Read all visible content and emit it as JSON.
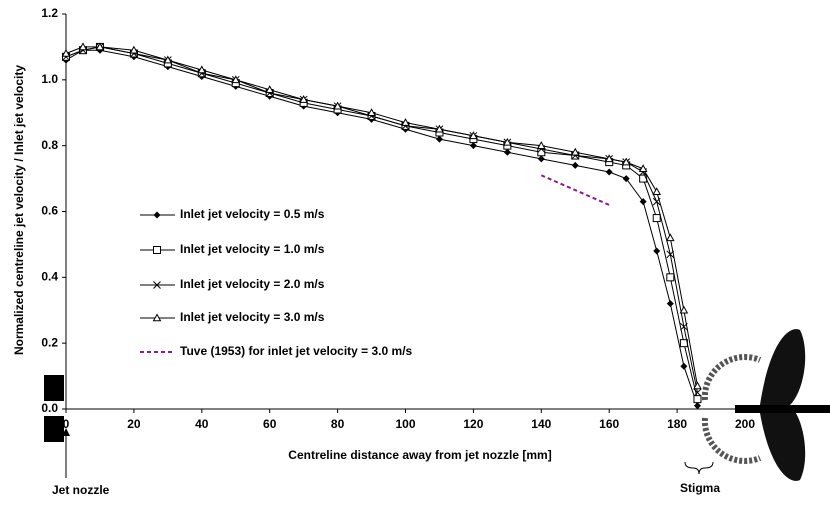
{
  "chart_data": {
    "type": "line",
    "x_label": "Centreline distance away from jet nozzle [mm]",
    "y_label": "Normalized centreline jet velocity / Inlet jet velocity",
    "annotations": [
      "Jet nozzle",
      "Stigma"
    ],
    "x": [
      0,
      5,
      10,
      20,
      30,
      40,
      50,
      60,
      70,
      80,
      90,
      100,
      110,
      120,
      130,
      140,
      150,
      160,
      165,
      170,
      174,
      178,
      182,
      186
    ],
    "xlim": [
      0,
      220
    ],
    "ylim": [
      0,
      1.2
    ],
    "xticks": [
      0,
      20,
      40,
      60,
      80,
      100,
      120,
      140,
      160,
      180,
      200
    ],
    "yticks": [
      {
        "value": 0,
        "label": "0.0"
      },
      0.2,
      0.4,
      0.6,
      0.8,
      {
        "value": 1,
        "label": "1.0"
      },
      1.2
    ],
    "series": [
      {
        "name": "Inlet jet velocity = 0.5 m/s",
        "color": "#000000",
        "marker": "diamond",
        "values": [
          1.06,
          1.09,
          1.09,
          1.07,
          1.04,
          1.01,
          0.98,
          0.95,
          0.92,
          0.9,
          0.88,
          0.85,
          0.82,
          0.8,
          0.78,
          0.76,
          0.74,
          0.72,
          0.7,
          0.63,
          0.48,
          0.32,
          0.13,
          0.01
        ]
      },
      {
        "name": "Inlet jet velocity = 1.0 m/s",
        "color": "#000000",
        "marker": "square",
        "values": [
          1.07,
          1.09,
          1.1,
          1.08,
          1.05,
          1.02,
          0.99,
          0.96,
          0.93,
          0.91,
          0.89,
          0.86,
          0.84,
          0.82,
          0.8,
          0.78,
          0.77,
          0.75,
          0.74,
          0.7,
          0.58,
          0.4,
          0.2,
          0.03
        ]
      },
      {
        "name": "Inlet jet velocity = 2.0 m/s",
        "color": "#000000",
        "marker": "cross",
        "values": [
          1.07,
          1.09,
          1.1,
          1.08,
          1.06,
          1.02,
          1.0,
          0.96,
          0.94,
          0.92,
          0.89,
          0.86,
          0.85,
          0.83,
          0.81,
          0.79,
          0.77,
          0.76,
          0.75,
          0.72,
          0.63,
          0.47,
          0.25,
          0.05
        ]
      },
      {
        "name": "Inlet jet velocity = 3.0 m/s",
        "color": "#000000",
        "marker": "triangle",
        "values": [
          1.08,
          1.1,
          1.1,
          1.09,
          1.06,
          1.03,
          1.0,
          0.97,
          0.94,
          0.92,
          0.9,
          0.87,
          0.85,
          0.83,
          0.81,
          0.8,
          0.78,
          0.76,
          0.75,
          0.73,
          0.66,
          0.52,
          0.3,
          0.07
        ]
      },
      {
        "name": "Tuve (1953) for inlet jet velocity = 3.0 m/s",
        "color": "#8b1a8b",
        "line_style": "dashed",
        "x": [
          140,
          160
        ],
        "values": [
          0.71,
          0.62
        ]
      }
    ]
  }
}
